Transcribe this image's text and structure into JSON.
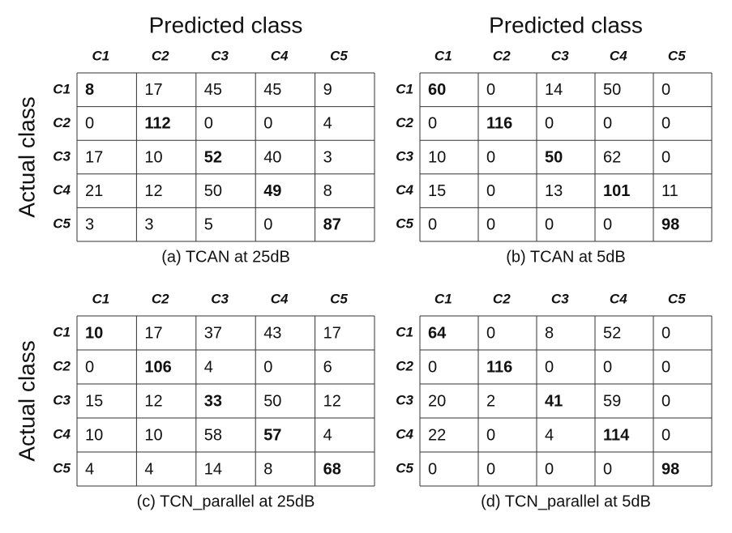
{
  "panels": [
    {
      "predicted_label": "Predicted class",
      "actual_label": "Actual class",
      "columns": [
        "C1",
        "C2",
        "C3",
        "C4",
        "C5"
      ],
      "rows": [
        "C1",
        "C2",
        "C3",
        "C4",
        "C5"
      ],
      "cells": [
        [
          8,
          17,
          45,
          45,
          9
        ],
        [
          0,
          112,
          0,
          0,
          4
        ],
        [
          17,
          10,
          52,
          40,
          3
        ],
        [
          21,
          12,
          50,
          49,
          8
        ],
        [
          3,
          3,
          5,
          0,
          87
        ]
      ],
      "caption": "(a) TCAN at 25dB"
    },
    {
      "predicted_label": "Predicted class",
      "columns": [
        "C1",
        "C2",
        "C3",
        "C4",
        "C5"
      ],
      "rows": [
        "C1",
        "C2",
        "C3",
        "C4",
        "C5"
      ],
      "cells": [
        [
          60,
          0,
          14,
          50,
          0
        ],
        [
          0,
          116,
          0,
          0,
          0
        ],
        [
          10,
          0,
          50,
          62,
          0
        ],
        [
          15,
          0,
          13,
          101,
          11
        ],
        [
          0,
          0,
          0,
          0,
          98
        ]
      ],
      "caption": "(b) TCAN at 5dB"
    },
    {
      "actual_label": "Actual class",
      "columns": [
        "C1",
        "C2",
        "C3",
        "C4",
        "C5"
      ],
      "rows": [
        "C1",
        "C2",
        "C3",
        "C4",
        "C5"
      ],
      "cells": [
        [
          10,
          17,
          37,
          43,
          17
        ],
        [
          0,
          106,
          4,
          0,
          6
        ],
        [
          15,
          12,
          33,
          50,
          12
        ],
        [
          10,
          10,
          58,
          57,
          4
        ],
        [
          4,
          4,
          14,
          8,
          68
        ]
      ],
      "caption": "(c) TCN_parallel at 25dB"
    },
    {
      "columns": [
        "C1",
        "C2",
        "C3",
        "C4",
        "C5"
      ],
      "rows": [
        "C1",
        "C2",
        "C3",
        "C4",
        "C5"
      ],
      "cells": [
        [
          64,
          0,
          8,
          52,
          0
        ],
        [
          0,
          116,
          0,
          0,
          0
        ],
        [
          20,
          2,
          41,
          59,
          0
        ],
        [
          22,
          0,
          4,
          114,
          0
        ],
        [
          0,
          0,
          0,
          0,
          98
        ]
      ],
      "caption": "(d) TCN_parallel at 5dB"
    }
  ]
}
